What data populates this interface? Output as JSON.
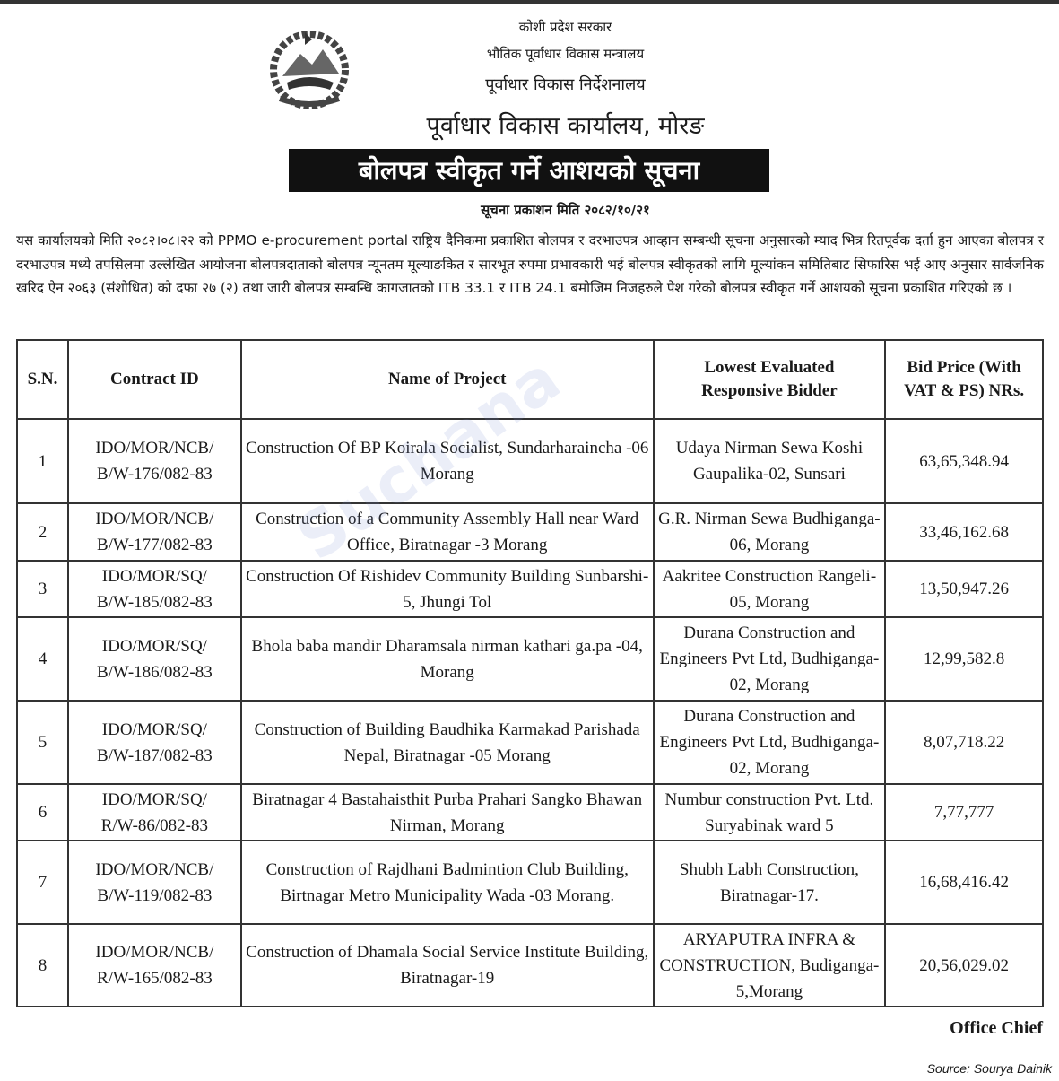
{
  "header": {
    "line1": "कोशी प्रदेश सरकार",
    "line2": "भौतिक पूर्वाधार विकास मन्त्रालय",
    "line3": "पूर्वाधार विकास निर्देशनालय",
    "office": "पूर्वाधार विकास कार्यालय, मोरङ",
    "title": "बोलपत्र स्वीकृत गर्ने आशयको सूचना",
    "publish_date": "सूचना प्रकाशन मिति २०८२/१०/२१"
  },
  "body_text": "यस कार्यालयको मिति २०८२।०८।२२ को PPMO e-procurement portal राष्ट्रिय दैनिकमा प्रकाशित बोलपत्र र दरभाउपत्र आव्हान सम्बन्धी सूचना अनुसारको म्याद भित्र रितपूर्वक दर्ता हुन आएका बोलपत्र र दरभाउपत्र मध्ये तपसिलमा उल्लेखित आयोजना बोलपत्रदाताको बोलपत्र न्यूनतम मूल्याङकित र सारभूत रुपमा प्रभावकारी भई बोलपत्र स्वीकृतको लागि मूल्यांकन समितिबाट सिफारिस भई आए अनुसार सार्वजनिक खरिद ऐन २०६३ (संशोधित) को दफा २७ (२) तथा जारी बोलपत्र सम्बन्धि कागजातको ITB 33.1 र ITB 24.1 बमोजिम निजहरुले पेश गरेको बोलपत्र स्वीकृत गर्ने आशयको सूचना प्रकाशित गरिएको छ ।",
  "table": {
    "headers": [
      "S.N.",
      "Contract ID",
      "Name of Project",
      "Lowest Evaluated Responsive Bidder",
      "Bid Price (With VAT & PS) NRs."
    ],
    "rows": [
      [
        "1",
        "IDO/MOR/NCB/ B/W-176/082-83",
        "Construction Of BP Koirala Socialist, Sundarharaincha -06 Morang",
        "Udaya Nirman Sewa Koshi Gaupalika-02, Sunsari",
        "63,65,348.94"
      ],
      [
        "2",
        "IDO/MOR/NCB/ B/W-177/082-83",
        "Construction of a Community Assembly Hall near Ward Office, Biratnagar -3 Morang",
        "G.R. Nirman Sewa Budhiganga-06, Morang",
        "33,46,162.68"
      ],
      [
        "3",
        "IDO/MOR/SQ/ B/W-185/082-83",
        "Construction Of Rishidev Community Building Sunbarshi-5, Jhungi Tol",
        "Aakritee Construction Rangeli-05, Morang",
        "13,50,947.26"
      ],
      [
        "4",
        "IDO/MOR/SQ/ B/W-186/082-83",
        "Bhola baba mandir Dharamsala nirman kathari ga.pa -04, Morang",
        "Durana Construction and Engineers Pvt Ltd, Budhiganga-02, Morang",
        "12,99,582.8"
      ],
      [
        "5",
        "IDO/MOR/SQ/ B/W-187/082-83",
        "Construction of Building Baudhika Karmakad Parishada Nepal, Biratnagar -05 Morang",
        "Durana Construction and Engineers Pvt Ltd, Budhiganga-02, Morang",
        "8,07,718.22"
      ],
      [
        "6",
        "IDO/MOR/SQ/ R/W-86/082-83",
        "Biratnagar 4 Bastahaisthit Purba Prahari Sangko Bhawan Nirman, Morang",
        "Numbur construction Pvt. Ltd. Suryabinak ward 5",
        "7,77,777"
      ],
      [
        "7",
        "IDO/MOR/NCB/ B/W-119/082-83",
        "Construction of Rajdhani Badmintion Club Building, Birtnagar Metro Municipality Wada -03 Morang.",
        "Shubh Labh Construction, Biratnagar-17.",
        "16,68,416.42"
      ],
      [
        "8",
        "IDO/MOR/NCB/ R/W-165/082-83",
        "Construction of Dhamala Social Service Institute Building, Biratnagar-19",
        "ARYAPUTRA INFRA & CONSTRUCTION, Budiganga-5,Morang",
        "20,56,029.02"
      ]
    ]
  },
  "signature": "Office Chief",
  "source": "Source: Sourya Dainik",
  "watermark": "Suchana"
}
